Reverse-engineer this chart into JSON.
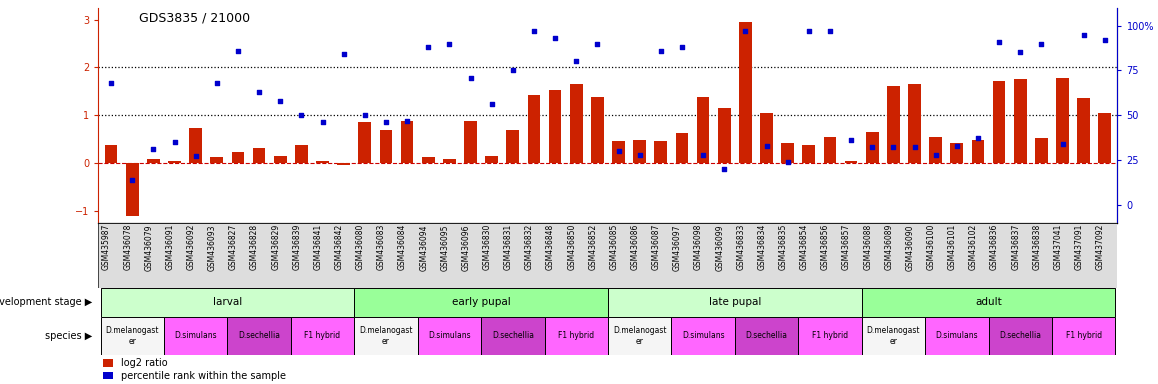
{
  "title": "GDS3835 / 21000",
  "samples": [
    "GSM435987",
    "GSM436078",
    "GSM436079",
    "GSM436091",
    "GSM436092",
    "GSM436093",
    "GSM436827",
    "GSM436828",
    "GSM436829",
    "GSM436839",
    "GSM436841",
    "GSM436842",
    "GSM436080",
    "GSM436083",
    "GSM436084",
    "GSM436094",
    "GSM436095",
    "GSM436096",
    "GSM436830",
    "GSM436831",
    "GSM436832",
    "GSM436848",
    "GSM436850",
    "GSM436852",
    "GSM436085",
    "GSM436086",
    "GSM436087",
    "GSM436097",
    "GSM436098",
    "GSM436099",
    "GSM436833",
    "GSM436834",
    "GSM436835",
    "GSM436854",
    "GSM436856",
    "GSM436857",
    "GSM436088",
    "GSM436089",
    "GSM436090",
    "GSM436100",
    "GSM436101",
    "GSM436102",
    "GSM436836",
    "GSM436837",
    "GSM436838",
    "GSM437041",
    "GSM437091",
    "GSM437092"
  ],
  "log2_ratio": [
    0.38,
    -1.1,
    0.08,
    0.05,
    0.73,
    0.12,
    0.22,
    0.32,
    0.14,
    0.38,
    0.05,
    -0.05,
    0.85,
    0.68,
    0.88,
    0.12,
    0.08,
    0.88,
    0.14,
    0.68,
    1.42,
    1.52,
    1.65,
    1.38,
    0.45,
    0.48,
    0.45,
    0.62,
    1.38,
    1.15,
    2.95,
    1.05,
    0.42,
    0.38,
    0.55,
    0.05,
    0.65,
    1.62,
    1.65,
    0.55,
    0.42,
    0.48,
    1.72,
    1.75,
    0.52,
    1.78,
    1.35,
    1.05
  ],
  "percentile": [
    68,
    14,
    31,
    35,
    27,
    68,
    86,
    63,
    58,
    50,
    46,
    84,
    50,
    46,
    47,
    88,
    90,
    71,
    56,
    75,
    97,
    93,
    80,
    90,
    30,
    28,
    86,
    88,
    28,
    20,
    97,
    33,
    24,
    97,
    97,
    36,
    32,
    32,
    32,
    28,
    33,
    37,
    91,
    85,
    90,
    34,
    95,
    92
  ],
  "dev_stages": [
    {
      "label": "larval",
      "start": 0,
      "end": 12,
      "color": "#ccffcc"
    },
    {
      "label": "early pupal",
      "start": 12,
      "end": 24,
      "color": "#99ff99"
    },
    {
      "label": "late pupal",
      "start": 24,
      "end": 36,
      "color": "#ccffcc"
    },
    {
      "label": "adult",
      "start": 36,
      "end": 48,
      "color": "#99ff99"
    }
  ],
  "species": [
    {
      "label": "D.melanogast\ner",
      "start": 0,
      "end": 3,
      "color": "#f5f5f5"
    },
    {
      "label": "D.simulans",
      "start": 3,
      "end": 6,
      "color": "#ff66ff"
    },
    {
      "label": "D.sechellia",
      "start": 6,
      "end": 9,
      "color": "#cc44cc"
    },
    {
      "label": "F1 hybrid",
      "start": 9,
      "end": 12,
      "color": "#ff66ff"
    },
    {
      "label": "D.melanogast\ner",
      "start": 12,
      "end": 15,
      "color": "#f5f5f5"
    },
    {
      "label": "D.simulans",
      "start": 15,
      "end": 18,
      "color": "#ff66ff"
    },
    {
      "label": "D.sechellia",
      "start": 18,
      "end": 21,
      "color": "#cc44cc"
    },
    {
      "label": "F1 hybrid",
      "start": 21,
      "end": 24,
      "color": "#ff66ff"
    },
    {
      "label": "D.melanogast\ner",
      "start": 24,
      "end": 27,
      "color": "#f5f5f5"
    },
    {
      "label": "D.simulans",
      "start": 27,
      "end": 30,
      "color": "#ff66ff"
    },
    {
      "label": "D.sechellia",
      "start": 30,
      "end": 33,
      "color": "#cc44cc"
    },
    {
      "label": "F1 hybrid",
      "start": 33,
      "end": 36,
      "color": "#ff66ff"
    },
    {
      "label": "D.melanogast\ner",
      "start": 36,
      "end": 39,
      "color": "#f5f5f5"
    },
    {
      "label": "D.simulans",
      "start": 39,
      "end": 42,
      "color": "#ff66ff"
    },
    {
      "label": "D.sechellia",
      "start": 42,
      "end": 45,
      "color": "#cc44cc"
    },
    {
      "label": "F1 hybrid",
      "start": 45,
      "end": 48,
      "color": "#ff66ff"
    }
  ],
  "ylim_left": [
    -1.25,
    3.25
  ],
  "ylim_right": [
    -10,
    110
  ],
  "yticks_left": [
    -1,
    0,
    1,
    2,
    3
  ],
  "yticks_right": [
    0,
    25,
    50,
    75,
    100
  ],
  "ytick_right_labels": [
    "0",
    "25",
    "50",
    "75",
    "100%"
  ],
  "bar_color": "#cc2200",
  "scatter_color": "#0000cc",
  "dashed_line_color": "#cc0000",
  "dotted_line_color": "#000000",
  "bg_color": "#ffffff",
  "label_bg": "#dddddd"
}
